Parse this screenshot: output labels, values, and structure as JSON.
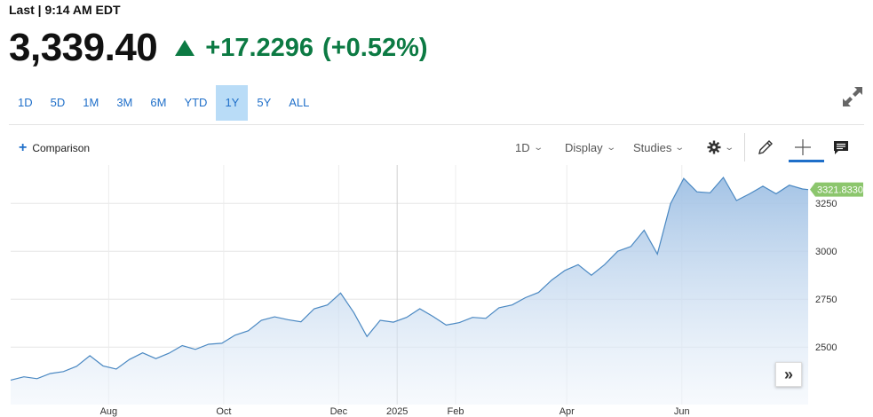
{
  "quote": {
    "last_label": "Last | 9:14 AM EDT",
    "price": "3,339.40",
    "change": "+17.2296",
    "change_pct": "(+0.52%)",
    "direction": "up",
    "up_color": "#0c7a43"
  },
  "ranges": [
    {
      "label": "1D",
      "active": false
    },
    {
      "label": "5D",
      "active": false
    },
    {
      "label": "1M",
      "active": false
    },
    {
      "label": "3M",
      "active": false
    },
    {
      "label": "6M",
      "active": false
    },
    {
      "label": "YTD",
      "active": false
    },
    {
      "label": "1Y",
      "active": true
    },
    {
      "label": "5Y",
      "active": false
    },
    {
      "label": "ALL",
      "active": false
    }
  ],
  "toolbar": {
    "comparison_label": "Comparison",
    "interval_label": "1D",
    "display_label": "Display",
    "studies_label": "Studies",
    "icons": [
      "expand-icon",
      "plus-icon",
      "gear-icon",
      "pencil-icon",
      "crosshair-icon",
      "comment-icon"
    ]
  },
  "chart_data": {
    "type": "area",
    "y_ticks": [
      "3250",
      "3000",
      "2750",
      "2500"
    ],
    "x_ticks": [
      "Aug",
      "Oct",
      "Dec",
      "2025",
      "Feb",
      "Apr",
      "Jun"
    ],
    "ylim": [
      2200,
      3450
    ],
    "last_value_label": "3321.8330",
    "line_color": "#4a88c2",
    "badge_color": "#8cc66d",
    "series": [
      {
        "x": "2024-06-10",
        "y": 2328
      },
      {
        "x": "2024-06-17",
        "y": 2345
      },
      {
        "x": "2024-06-24",
        "y": 2335
      },
      {
        "x": "2024-07-01",
        "y": 2362
      },
      {
        "x": "2024-07-08",
        "y": 2372
      },
      {
        "x": "2024-07-15",
        "y": 2400
      },
      {
        "x": "2024-07-22",
        "y": 2455
      },
      {
        "x": "2024-07-29",
        "y": 2402
      },
      {
        "x": "2024-08-05",
        "y": 2385
      },
      {
        "x": "2024-08-12",
        "y": 2435
      },
      {
        "x": "2024-08-19",
        "y": 2470
      },
      {
        "x": "2024-08-26",
        "y": 2440
      },
      {
        "x": "2024-09-02",
        "y": 2468
      },
      {
        "x": "2024-09-09",
        "y": 2508
      },
      {
        "x": "2024-09-16",
        "y": 2488
      },
      {
        "x": "2024-09-23",
        "y": 2515
      },
      {
        "x": "2024-09-30",
        "y": 2520
      },
      {
        "x": "2024-10-07",
        "y": 2562
      },
      {
        "x": "2024-10-14",
        "y": 2585
      },
      {
        "x": "2024-10-21",
        "y": 2640
      },
      {
        "x": "2024-10-28",
        "y": 2658
      },
      {
        "x": "2024-11-04",
        "y": 2643
      },
      {
        "x": "2024-11-11",
        "y": 2632
      },
      {
        "x": "2024-11-18",
        "y": 2700
      },
      {
        "x": "2024-11-25",
        "y": 2720
      },
      {
        "x": "2024-12-02",
        "y": 2782
      },
      {
        "x": "2024-12-09",
        "y": 2680
      },
      {
        "x": "2024-12-16",
        "y": 2555
      },
      {
        "x": "2024-12-23",
        "y": 2640
      },
      {
        "x": "2024-12-30",
        "y": 2630
      },
      {
        "x": "2025-01-06",
        "y": 2655
      },
      {
        "x": "2025-01-13",
        "y": 2700
      },
      {
        "x": "2025-01-20",
        "y": 2660
      },
      {
        "x": "2025-01-27",
        "y": 2615
      },
      {
        "x": "2025-02-03",
        "y": 2628
      },
      {
        "x": "2025-02-10",
        "y": 2655
      },
      {
        "x": "2025-02-17",
        "y": 2650
      },
      {
        "x": "2025-02-24",
        "y": 2705
      },
      {
        "x": "2025-03-03",
        "y": 2720
      },
      {
        "x": "2025-03-10",
        "y": 2758
      },
      {
        "x": "2025-03-17",
        "y": 2785
      },
      {
        "x": "2025-03-24",
        "y": 2850
      },
      {
        "x": "2025-03-31",
        "y": 2900
      },
      {
        "x": "2025-04-07",
        "y": 2930
      },
      {
        "x": "2025-04-14",
        "y": 2875
      },
      {
        "x": "2025-04-21",
        "y": 2930
      },
      {
        "x": "2025-04-28",
        "y": 3000
      },
      {
        "x": "2025-05-05",
        "y": 3025
      },
      {
        "x": "2025-05-12",
        "y": 3110
      },
      {
        "x": "2025-05-19",
        "y": 2985
      },
      {
        "x": "2025-05-26",
        "y": 3248
      },
      {
        "x": "2025-06-02",
        "y": 3380
      },
      {
        "x": "2025-06-09",
        "y": 3310
      },
      {
        "x": "2025-06-16",
        "y": 3305
      },
      {
        "x": "2025-06-23",
        "y": 3385
      },
      {
        "x": "2025-06-30",
        "y": 3265
      },
      {
        "x": "2025-07-07",
        "y": 3300
      },
      {
        "x": "2025-07-14",
        "y": 3340
      },
      {
        "x": "2025-07-21",
        "y": 3300
      },
      {
        "x": "2025-07-28",
        "y": 3345
      },
      {
        "x": "2025-08-04",
        "y": 3325
      },
      {
        "x": "2025-08-07",
        "y": 3321.833
      }
    ]
  }
}
